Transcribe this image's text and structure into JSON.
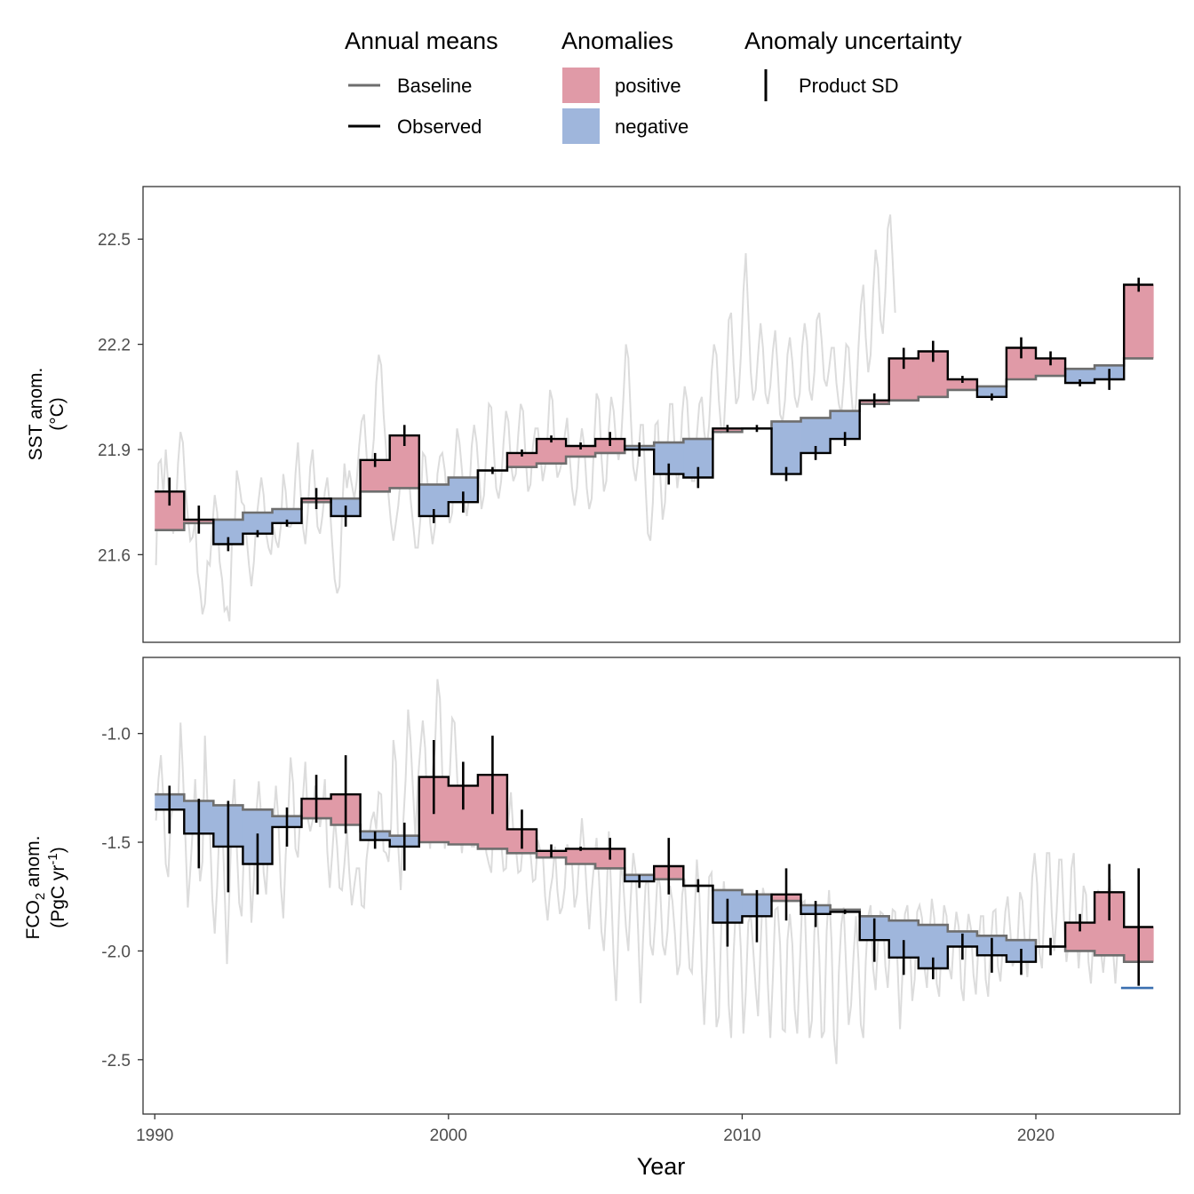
{
  "legend": {
    "annual_means": {
      "title": "Annual means",
      "items": [
        {
          "label": "Baseline",
          "color": "#6e6e6e"
        },
        {
          "label": "Observed",
          "color": "#000000"
        }
      ]
    },
    "anomalies": {
      "title": "Anomalies",
      "items": [
        {
          "label": "positive",
          "color": "#e09aa7"
        },
        {
          "label": "negative",
          "color": "#9fb6dc"
        }
      ]
    },
    "uncertainty": {
      "title": "Anomaly uncertainty",
      "items": [
        {
          "label": "Product SD",
          "color": "#000000"
        }
      ]
    }
  },
  "xaxis": {
    "label": "Year",
    "ticks": [
      1990,
      2000,
      2010,
      2020
    ],
    "range": [
      1989.6,
      2024.9
    ]
  },
  "colors": {
    "positive": "#e09aa7",
    "negative": "#9fb6dc",
    "baseline": "#6e6e6e",
    "observed": "#000000",
    "monthly": "#dcdcdc",
    "marker": "#3a6fb0"
  },
  "chart_data": [
    {
      "type": "step-area",
      "panel": "SST",
      "ylabel_line1": "SST anom.",
      "ylabel_line2": "(°C)",
      "ylim": [
        21.35,
        22.65
      ],
      "yticks": [
        21.6,
        21.9,
        22.2,
        22.5
      ],
      "years": [
        1990,
        1991,
        1992,
        1993,
        1994,
        1995,
        1996,
        1997,
        1998,
        1999,
        2000,
        2001,
        2002,
        2003,
        2004,
        2005,
        2006,
        2007,
        2008,
        2009,
        2010,
        2011,
        2012,
        2013,
        2014,
        2015,
        2016,
        2017,
        2018,
        2019,
        2020,
        2021,
        2022,
        2023
      ],
      "observed": [
        21.78,
        21.7,
        21.63,
        21.66,
        21.69,
        21.76,
        21.71,
        21.87,
        21.94,
        21.71,
        21.75,
        21.84,
        21.89,
        21.93,
        21.91,
        21.93,
        21.9,
        21.83,
        21.82,
        21.96,
        21.96,
        21.83,
        21.89,
        21.93,
        22.04,
        22.16,
        22.18,
        22.1,
        22.05,
        22.19,
        22.16,
        22.09,
        22.1,
        22.37
      ],
      "baseline": [
        21.67,
        21.69,
        21.7,
        21.72,
        21.73,
        21.75,
        21.76,
        21.78,
        21.79,
        21.8,
        21.82,
        21.84,
        21.85,
        21.86,
        21.88,
        21.89,
        21.91,
        21.92,
        21.93,
        21.95,
        21.96,
        21.98,
        21.99,
        22.01,
        22.03,
        22.04,
        22.05,
        22.07,
        22.08,
        22.1,
        22.11,
        22.13,
        22.14,
        22.16
      ],
      "sd": [
        0.04,
        0.04,
        0.02,
        0.01,
        0.01,
        0.03,
        0.03,
        0.02,
        0.03,
        0.02,
        0.03,
        0.01,
        0.01,
        0.01,
        0.01,
        0.02,
        0.02,
        0.03,
        0.03,
        0.01,
        0.01,
        0.02,
        0.02,
        0.02,
        0.02,
        0.03,
        0.03,
        0.01,
        0.01,
        0.03,
        0.02,
        0.01,
        0.03,
        0.02
      ],
      "monthly": [
        21.57,
        21.86,
        21.87,
        21.77,
        21.9,
        21.8,
        21.74,
        21.66,
        21.7,
        21.86,
        21.95,
        21.92,
        21.79,
        21.71,
        21.64,
        21.65,
        21.7,
        21.55,
        21.5,
        21.43,
        21.46,
        21.58,
        21.57,
        21.68,
        21.77,
        21.72,
        21.58,
        21.53,
        21.44,
        21.45,
        21.41,
        21.63,
        21.65,
        21.84,
        21.8,
        21.75,
        21.74,
        21.65,
        21.57,
        21.51,
        21.58,
        21.7,
        21.76,
        21.82,
        21.77,
        21.66,
        21.62,
        21.6,
        21.68,
        21.64,
        21.62,
        21.68,
        21.83,
        21.78,
        21.68,
        21.68,
        21.7,
        21.83,
        21.92,
        21.79,
        21.68,
        21.63,
        21.72,
        21.85,
        21.9,
        21.79,
        21.68,
        21.66,
        21.71,
        21.78,
        21.82,
        21.74,
        21.63,
        21.53,
        21.49,
        21.51,
        21.72,
        21.86,
        21.79,
        21.84,
        21.8,
        21.76,
        21.81,
        21.91,
        21.98,
        22.0,
        21.89,
        21.78,
        21.85,
        21.93,
        22.09,
        22.17,
        22.14,
        22.0,
        21.9,
        21.77,
        21.69,
        21.64,
        21.69,
        21.74,
        21.82,
        21.9,
        21.93,
        21.86,
        21.76,
        21.69,
        21.62,
        21.62,
        21.7,
        21.89,
        21.88,
        21.8,
        21.69,
        21.63,
        21.68,
        21.83,
        21.88,
        21.89,
        21.84,
        21.75,
        21.69,
        21.72,
        21.85,
        21.96,
        21.92,
        21.84,
        21.75,
        21.71,
        21.77,
        21.91,
        21.97,
        21.92,
        21.82,
        21.73,
        21.77,
        21.9,
        22.03,
        22.02,
        21.9,
        21.79,
        21.76,
        21.81,
        21.92,
        22.01,
        21.98,
        21.86,
        21.81,
        21.83,
        21.94,
        22.03,
        22.01,
        21.88,
        21.78,
        21.8,
        21.91,
        21.96,
        21.96,
        21.89,
        21.81,
        21.85,
        21.94,
        22.07,
        22.04,
        21.89,
        21.82,
        21.84,
        21.87,
        21.94,
        21.99,
        21.88,
        21.79,
        21.74,
        21.79,
        21.9,
        21.96,
        21.91,
        21.79,
        21.73,
        21.76,
        21.92,
        22.06,
        22.04,
        21.88,
        21.78,
        21.81,
        21.96,
        22.05,
        22.01,
        21.92,
        21.87,
        21.92,
        22.05,
        22.2,
        22.16,
        21.99,
        21.85,
        21.81,
        21.87,
        21.97,
        21.97,
        21.8,
        21.66,
        21.64,
        21.75,
        21.97,
        21.98,
        21.83,
        21.7,
        21.75,
        21.91,
        22.03,
        22.03,
        21.89,
        21.79,
        21.85,
        22.0,
        22.08,
        22.04,
        21.91,
        21.81,
        21.81,
        21.94,
        22.03,
        22.05,
        21.95,
        21.9,
        21.97,
        22.12,
        22.2,
        22.17,
        22.04,
        21.95,
        21.96,
        22.1,
        22.27,
        22.29,
        22.14,
        22.03,
        22.05,
        22.17,
        22.35,
        22.46,
        22.29,
        22.12,
        22.04,
        22.07,
        22.17,
        22.26,
        22.19,
        22.06,
        22.03,
        22.08,
        22.18,
        22.24,
        22.13,
        22.0,
        21.98,
        22.04,
        22.17,
        22.22,
        22.15,
        22.05,
        22.02,
        22.06,
        22.19,
        22.26,
        22.21,
        22.07,
        22.04,
        22.12,
        22.27,
        22.29,
        22.21,
        22.1,
        22.08,
        22.13,
        22.19,
        22.19,
        22.09,
        22.03,
        22.0,
        22.09,
        22.2,
        22.19,
        22.07,
        21.98,
        22.03,
        22.19,
        22.31,
        22.37,
        22.22,
        22.12,
        22.17,
        22.35,
        22.47,
        22.42,
        22.27,
        22.23,
        22.35,
        22.53,
        22.57,
        22.44,
        22.29
      ]
    },
    {
      "type": "step-area",
      "panel": "FCO2",
      "ylabel_line1_main": "FCO",
      "ylabel_line1_sub": "2",
      "ylabel_line1_end": " anom.",
      "ylabel_line2_main": "(PgC yr",
      "ylabel_line2_sup": "-1",
      "ylabel_line2_end": ")",
      "ylim": [
        -2.75,
        -0.65
      ],
      "yticks": [
        -1.0,
        -1.5,
        -2.0,
        -2.5
      ],
      "ytick_labels": [
        "-1.0",
        "-1.5",
        "-2.0",
        "-2.5"
      ],
      "years": [
        1990,
        1991,
        1992,
        1993,
        1994,
        1995,
        1996,
        1997,
        1998,
        1999,
        2000,
        2001,
        2002,
        2003,
        2004,
        2005,
        2006,
        2007,
        2008,
        2009,
        2010,
        2011,
        2012,
        2013,
        2014,
        2015,
        2016,
        2017,
        2018,
        2019,
        2020,
        2021,
        2022,
        2023
      ],
      "observed": [
        -1.35,
        -1.46,
        -1.52,
        -1.6,
        -1.43,
        -1.3,
        -1.28,
        -1.49,
        -1.52,
        -1.2,
        -1.24,
        -1.19,
        -1.44,
        -1.54,
        -1.53,
        -1.53,
        -1.68,
        -1.61,
        -1.7,
        -1.87,
        -1.84,
        -1.74,
        -1.83,
        -1.82,
        -1.95,
        -2.03,
        -2.08,
        -1.98,
        -2.02,
        -2.05,
        -1.98,
        -1.87,
        -1.73,
        -1.89
      ],
      "baseline": [
        -1.28,
        -1.31,
        -1.33,
        -1.35,
        -1.38,
        -1.39,
        -1.42,
        -1.45,
        -1.47,
        -1.5,
        -1.51,
        -1.53,
        -1.55,
        -1.57,
        -1.6,
        -1.62,
        -1.65,
        -1.67,
        -1.7,
        -1.72,
        -1.74,
        -1.77,
        -1.79,
        -1.81,
        -1.84,
        -1.86,
        -1.88,
        -1.91,
        -1.93,
        -1.95,
        -1.98,
        -2.0,
        -2.02,
        -2.05
      ],
      "sd": [
        0.11,
        0.16,
        0.21,
        0.14,
        0.09,
        0.11,
        0.18,
        0.04,
        0.11,
        0.17,
        0.11,
        0.18,
        0.09,
        0.03,
        0.01,
        0.05,
        0.03,
        0.13,
        0.03,
        0.11,
        0.12,
        0.12,
        0.06,
        0.01,
        0.1,
        0.08,
        0.05,
        0.06,
        0.08,
        0.06,
        0.04,
        0.04,
        0.13,
        0.27
      ],
      "monthly": [
        -1.4,
        -1.21,
        -1.1,
        -1.3,
        -1.6,
        -1.66,
        -1.4,
        -1.32,
        -1.35,
        -1.35,
        -0.95,
        -1.18,
        -1.48,
        -1.8,
        -1.63,
        -1.44,
        -1.21,
        -1.46,
        -1.68,
        -1.59,
        -1.01,
        -1.32,
        -1.43,
        -1.76,
        -1.92,
        -1.7,
        -1.41,
        -1.38,
        -1.7,
        -2.06,
        -1.72,
        -1.37,
        -1.21,
        -1.52,
        -1.78,
        -1.84,
        -1.51,
        -1.36,
        -1.56,
        -1.87,
        -1.67,
        -1.36,
        -1.22,
        -1.39,
        -1.64,
        -1.74,
        -1.5,
        -1.39,
        -1.42,
        -1.24,
        -1.39,
        -1.7,
        -1.85,
        -1.56,
        -1.37,
        -1.11,
        -1.23,
        -1.53,
        -1.57,
        -1.37,
        -1.3,
        -1.13,
        -1.39,
        -1.45,
        -1.4,
        -1.24,
        -1.3,
        -1.43,
        -1.35,
        -1.21,
        -1.54,
        -1.71,
        -1.55,
        -1.38,
        -1.52,
        -1.71,
        -1.72,
        -1.6,
        -1.44,
        -1.64,
        -1.79,
        -1.7,
        -1.62,
        -1.62,
        -1.79,
        -1.8,
        -1.58,
        -1.48,
        -1.4,
        -1.36,
        -1.44,
        -1.27,
        -1.28,
        -1.54,
        -1.55,
        -1.59,
        -1.44,
        -1.03,
        -1.13,
        -1.52,
        -1.72,
        -1.41,
        -1.21,
        -0.89,
        -1.03,
        -1.26,
        -1.48,
        -1.22,
        -1.07,
        -0.94,
        -1.07,
        -1.41,
        -1.53,
        -1.18,
        -1.06,
        -0.75,
        -0.84,
        -1.19,
        -1.53,
        -1.41,
        -1.2,
        -0.93,
        -0.95,
        -1.19,
        -1.43,
        -1.55,
        -1.42,
        -1.36,
        -1.45,
        -1.52,
        -1.52,
        -1.31,
        -1.27,
        -1.27,
        -1.45,
        -1.55,
        -1.6,
        -1.64,
        -1.39,
        -1.31,
        -1.28,
        -1.5,
        -1.63,
        -1.62,
        -1.4,
        -1.27,
        -1.45,
        -1.52,
        -1.64,
        -1.63,
        -1.5,
        -1.5,
        -1.5,
        -1.55,
        -1.68,
        -1.67,
        -1.49,
        -1.54,
        -1.54,
        -1.75,
        -1.86,
        -1.73,
        -1.66,
        -1.52,
        -1.72,
        -1.83,
        -1.8,
        -1.71,
        -1.51,
        -1.54,
        -1.6,
        -1.8,
        -1.74,
        -1.56,
        -1.39,
        -1.53,
        -1.73,
        -1.9,
        -1.73,
        -1.6,
        -1.48,
        -1.66,
        -1.91,
        -2.0,
        -1.79,
        -1.45,
        -1.73,
        -2.04,
        -2.23,
        -1.88,
        -1.58,
        -1.7,
        -1.89,
        -2.0,
        -1.75,
        -1.55,
        -1.64,
        -1.91,
        -2.24,
        -1.95,
        -1.7,
        -1.65,
        -1.97,
        -2.02,
        -1.86,
        -1.63,
        -1.71,
        -1.97,
        -2.02,
        -1.91,
        -1.7,
        -1.77,
        -1.92,
        -2.11,
        -2.06,
        -1.74,
        -1.67,
        -1.88,
        -2.08,
        -2.1,
        -1.85,
        -1.58,
        -1.74,
        -2.09,
        -2.34,
        -2.07,
        -1.66,
        -1.64,
        -1.99,
        -2.35,
        -2.3,
        -1.87,
        -1.68,
        -1.84,
        -2.25,
        -2.4,
        -2.01,
        -1.78,
        -1.78,
        -2.0,
        -2.38,
        -2.19,
        -1.87,
        -1.83,
        -1.99,
        -2.17,
        -2.3,
        -1.98,
        -1.71,
        -1.77,
        -2.15,
        -2.4,
        -2.13,
        -1.81,
        -1.8,
        -1.97,
        -2.36,
        -2.37,
        -1.95,
        -1.83,
        -1.97,
        -2.27,
        -2.38,
        -2.08,
        -1.78,
        -1.77,
        -2.12,
        -2.4,
        -2.32,
        -1.91,
        -1.79,
        -2.02,
        -2.4,
        -2.37,
        -1.91,
        -1.72,
        -1.96,
        -2.39,
        -2.52,
        -2.1,
        -1.88,
        -1.8,
        -2.08,
        -2.34,
        -2.25,
        -2.02,
        -1.84,
        -2.04,
        -2.34,
        -2.4,
        -2.05,
        -1.84,
        -1.79,
        -2.08,
        -2.18,
        -1.96,
        -1.82,
        -1.83,
        -2.07,
        -2.17,
        -1.96,
        -1.81,
        -1.82,
        -2.07,
        -2.36,
        -2.1,
        -1.83,
        -1.79,
        -1.96,
        -2.23,
        -2.13,
        -1.82,
        -1.79,
        -1.85,
        -2.08,
        -2.17,
        -1.93,
        -1.76,
        -1.85,
        -2.15,
        -2.21,
        -1.96,
        -1.79,
        -1.84,
        -2.07,
        -2.13,
        -1.94,
        -1.82,
        -1.89,
        -2.17,
        -2.23,
        -1.96,
        -1.83,
        -1.9,
        -2.11,
        -2.2,
        -1.98,
        -1.84,
        -1.84,
        -2.13,
        -2.21,
        -1.99,
        -1.82,
        -1.81,
        -2.07,
        -2.14,
        -1.98,
        -1.82,
        -1.75,
        -1.9,
        -2.07,
        -2.03,
        -1.97,
        -1.73,
        -1.77,
        -1.96,
        -2.12,
        -1.93,
        -1.66,
        -1.55,
        -1.69,
        -2.01,
        -2.08,
        -1.79,
        -1.55,
        -1.55,
        -1.83,
        -2.0,
        -1.82,
        -1.58,
        -1.58,
        -1.86,
        -2.05,
        -1.95,
        -1.62,
        -1.55,
        -1.89,
        -2.08,
        -1.91,
        -1.7,
        -1.74,
        -2.05,
        -2.15,
        -1.94,
        -1.75,
        -1.72,
        -1.99,
        -2.1,
        -1.97,
        -1.73,
        -1.67,
        -1.99,
        -2.15,
        -1.97,
        -1.8
      ],
      "marker_value": -2.17
    }
  ]
}
